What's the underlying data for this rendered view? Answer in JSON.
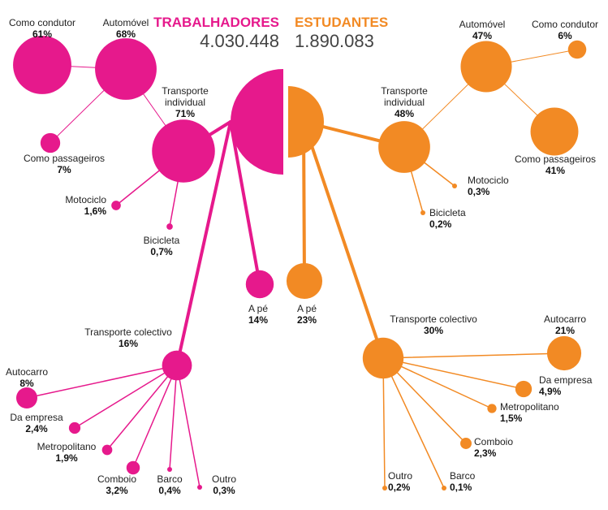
{
  "chart_data": {
    "type": "network-bubble",
    "colors": {
      "workers": "#E6198C",
      "students": "#F28A24"
    },
    "groups": [
      {
        "key": "workers",
        "title": "TRABALHADORES",
        "total": "4.030.448",
        "nodes": [
          {
            "key": "individual",
            "label": "Transporte individual",
            "lines": [
              "Transporte",
              "individual"
            ],
            "pct_text": "71%",
            "value": 71
          },
          {
            "key": "auto",
            "label": "Automóvel",
            "lines": [
              "Automóvel"
            ],
            "pct_text": "68%",
            "value": 68
          },
          {
            "key": "condutor",
            "label": "Como condutor",
            "lines": [
              "Como condutor"
            ],
            "pct_text": "61%",
            "value": 61
          },
          {
            "key": "passageiros",
            "label": "Como passageiros",
            "lines": [
              "Como passageiros"
            ],
            "pct_text": "7%",
            "value": 7
          },
          {
            "key": "moto",
            "label": "Motociclo",
            "lines": [
              "Motociclo"
            ],
            "pct_text": "1,6%",
            "value": 1.6
          },
          {
            "key": "bici",
            "label": "Bicicleta",
            "lines": [
              "Bicicleta"
            ],
            "pct_text": "0,7%",
            "value": 0.7
          },
          {
            "key": "ape",
            "label": "A pé",
            "lines": [
              "A pé"
            ],
            "pct_text": "14%",
            "value": 14
          },
          {
            "key": "colectivo",
            "label": "Transporte colectivo",
            "lines": [
              "Transporte colectivo"
            ],
            "pct_text": "16%",
            "value": 16
          },
          {
            "key": "autocarro",
            "label": "Autocarro",
            "lines": [
              "Autocarro"
            ],
            "pct_text": "8%",
            "value": 8
          },
          {
            "key": "empresa",
            "label": "Da empresa",
            "lines": [
              "Da empresa"
            ],
            "pct_text": "2,4%",
            "value": 2.4
          },
          {
            "key": "metro",
            "label": "Metropolitano",
            "lines": [
              "Metropolitano"
            ],
            "pct_text": "1,9%",
            "value": 1.9
          },
          {
            "key": "comboio",
            "label": "Comboio",
            "lines": [
              "Comboio"
            ],
            "pct_text": "3,2%",
            "value": 3.2
          },
          {
            "key": "barco",
            "label": "Barco",
            "lines": [
              "Barco"
            ],
            "pct_text": "0,4%",
            "value": 0.4
          },
          {
            "key": "outro",
            "label": "Outro",
            "lines": [
              "Outro"
            ],
            "pct_text": "0,3%",
            "value": 0.3
          }
        ]
      },
      {
        "key": "students",
        "title": "ESTUDANTES",
        "total": "1.890.083",
        "nodes": [
          {
            "key": "individual",
            "label": "Transporte individual",
            "lines": [
              "Transporte",
              "individual"
            ],
            "pct_text": "48%",
            "value": 48
          },
          {
            "key": "auto",
            "label": "Automóvel",
            "lines": [
              "Automóvel"
            ],
            "pct_text": "47%",
            "value": 47
          },
          {
            "key": "condutor",
            "label": "Como condutor",
            "lines": [
              "Como condutor"
            ],
            "pct_text": "6%",
            "value": 6
          },
          {
            "key": "passageiros",
            "label": "Como passageiros",
            "lines": [
              "Como passageiros"
            ],
            "pct_text": "41%",
            "value": 41
          },
          {
            "key": "moto",
            "label": "Motociclo",
            "lines": [
              "Motociclo"
            ],
            "pct_text": "0,3%",
            "value": 0.3
          },
          {
            "key": "bici",
            "label": "Bicicleta",
            "lines": [
              "Bicicleta"
            ],
            "pct_text": "0,2%",
            "value": 0.2
          },
          {
            "key": "ape",
            "label": "A pé",
            "lines": [
              "A pé"
            ],
            "pct_text": "23%",
            "value": 23
          },
          {
            "key": "colectivo",
            "label": "Transporte colectivo",
            "lines": [
              "Transporte colectivo"
            ],
            "pct_text": "30%",
            "value": 30
          },
          {
            "key": "autocarro",
            "label": "Autocarro",
            "lines": [
              "Autocarro"
            ],
            "pct_text": "21%",
            "value": 21
          },
          {
            "key": "empresa",
            "label": "Da empresa",
            "lines": [
              "Da empresa"
            ],
            "pct_text": "4,9%",
            "value": 4.9
          },
          {
            "key": "metro",
            "label": "Metropolitano",
            "lines": [
              "Metropolitano"
            ],
            "pct_text": "1,5%",
            "value": 1.5
          },
          {
            "key": "comboio",
            "label": "Comboio",
            "lines": [
              "Comboio"
            ],
            "pct_text": "2,3%",
            "value": 2.3
          },
          {
            "key": "barco",
            "label": "Barco",
            "lines": [
              "Barco"
            ],
            "pct_text": "0,1%",
            "value": 0.1
          },
          {
            "key": "outro",
            "label": "Outro",
            "lines": [
              "Outro"
            ],
            "pct_text": "0,2%",
            "value": 0.2
          }
        ]
      }
    ]
  }
}
